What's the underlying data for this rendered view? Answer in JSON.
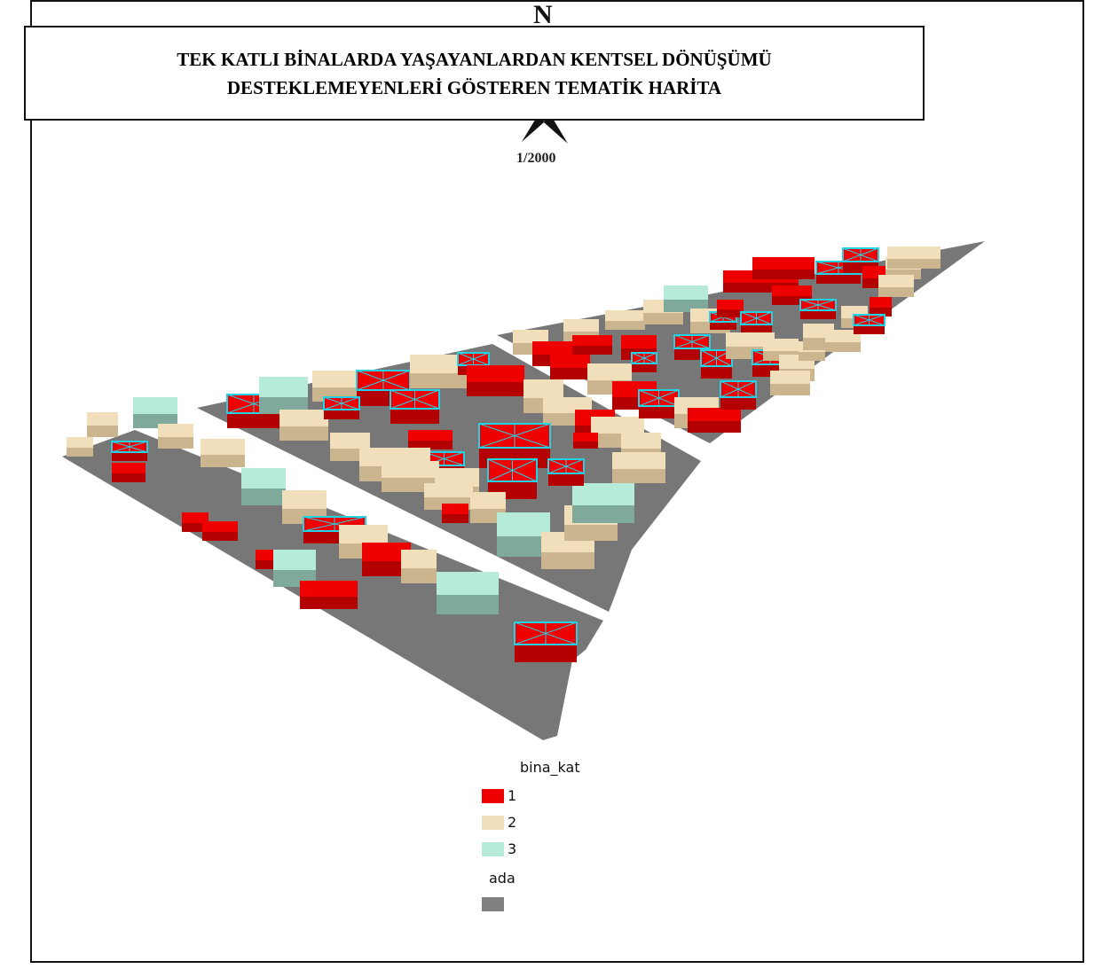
{
  "map": {
    "title_line1": "TEK KATLI BİNALARDA YAŞAYANLARDAN KENTSEL DÖNÜŞÜMÜ",
    "title_line2": "DESTEKLEMEYENLERİ GÖSTEREN TEMATİK HARİTA",
    "north_label": "N",
    "scale": "1/2000"
  },
  "legend": {
    "buildings_header": "bina_kat",
    "classes": [
      {
        "label": "1",
        "color": "#ee0000"
      },
      {
        "label": "2",
        "color": "#f1dfbc"
      },
      {
        "label": "3",
        "color": "#b7ebd9"
      }
    ],
    "blocks_header": "ada",
    "block_color": "#808080"
  },
  "colors": {
    "road": "#ffffff",
    "block": "#777777",
    "highlight_outline": "#22d3e6",
    "title_border": "#111111"
  }
}
